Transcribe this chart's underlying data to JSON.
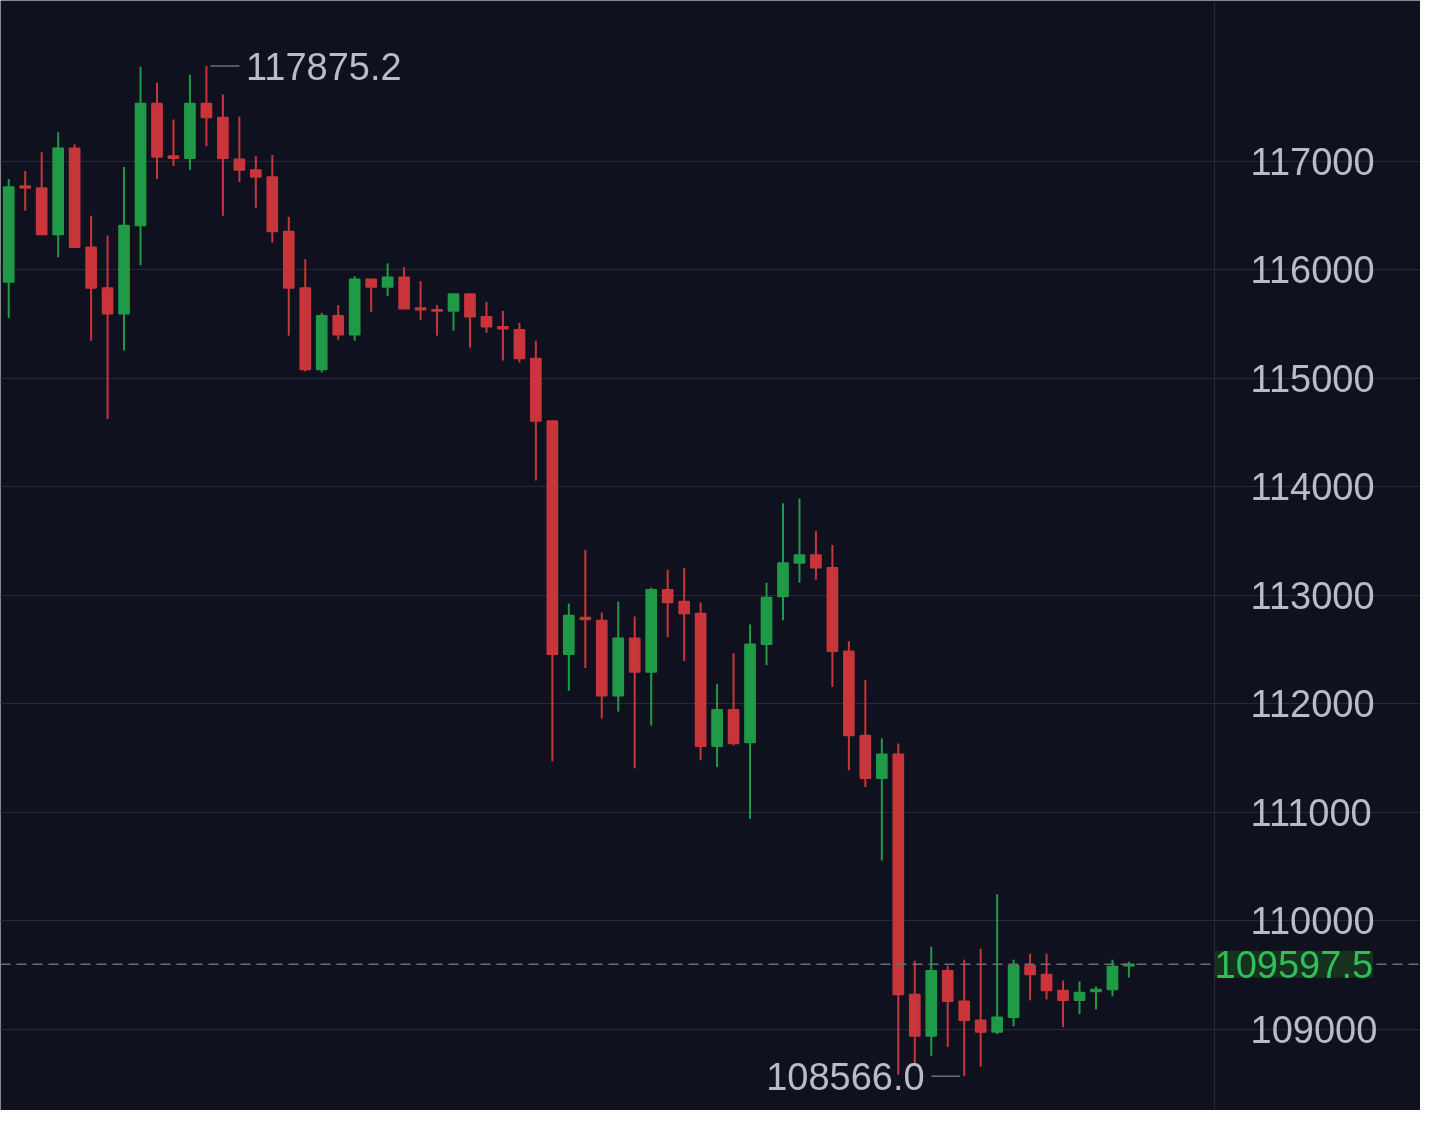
{
  "chart_data": {
    "type": "candlestick",
    "categories": [
      null,
      null,
      null,
      null,
      null,
      null,
      null,
      null,
      null,
      null,
      null,
      null,
      null,
      null,
      null,
      null,
      null,
      null,
      null,
      null,
      null,
      null,
      null,
      null,
      null,
      null,
      null,
      null,
      null,
      null,
      null,
      null,
      null,
      null,
      null,
      null,
      null,
      null,
      null,
      null,
      null,
      null,
      null,
      null,
      null,
      null,
      null,
      null,
      null,
      null,
      null,
      null,
      null,
      null,
      null,
      null,
      null,
      null,
      null,
      null,
      null,
      null,
      null,
      null,
      null,
      null,
      null,
      null,
      null
    ],
    "ohlc": [
      [
        115885,
        116835,
        115555,
        116762
      ],
      [
        116771,
        116909,
        116543,
        116753
      ],
      [
        116753,
        117082,
        116323,
        116323
      ],
      [
        116323,
        117265,
        116113,
        117119
      ],
      [
        117119,
        117155,
        116205,
        116205
      ],
      [
        116205,
        116497,
        115345,
        115830
      ],
      [
        115830,
        116314,
        114623,
        115592
      ],
      [
        115592,
        116945,
        115254,
        116406
      ],
      [
        116406,
        117869,
        116040,
        117530
      ],
      [
        117530,
        117722,
        116835,
        117037
      ],
      [
        117046,
        117384,
        116954,
        117027
      ],
      [
        117027,
        117795,
        116918,
        117530
      ],
      [
        117530,
        117875.2,
        117137,
        117402
      ],
      [
        117402,
        117613,
        116497,
        117027
      ],
      [
        117018,
        117411,
        116808,
        116918
      ],
      [
        116918,
        117046,
        116570,
        116854
      ],
      [
        116854,
        117055,
        116250,
        116351
      ],
      [
        116351,
        116488,
        115391,
        115830
      ],
      [
        115830,
        116095,
        115062,
        115080
      ],
      [
        115080,
        115601,
        115053,
        115574
      ],
      [
        115574,
        115674,
        115354,
        115400
      ],
      [
        115400,
        115939,
        115345,
        115912
      ],
      [
        115912,
        115912,
        115610,
        115839
      ],
      [
        115839,
        116058,
        115757,
        115930
      ],
      [
        115930,
        116022,
        115638,
        115638
      ],
      [
        115647,
        115894,
        115537,
        115629
      ],
      [
        115629,
        115674,
        115391,
        115619
      ],
      [
        115619,
        115775,
        115437,
        115775
      ],
      [
        115775,
        115775,
        115281,
        115565
      ],
      [
        115565,
        115702,
        115418,
        115473
      ],
      [
        115473,
        115619,
        115162,
        115455
      ],
      [
        115446,
        115510,
        115144,
        115181
      ],
      [
        115181,
        115345,
        114056,
        114605
      ],
      [
        114605,
        114605,
        111469,
        112456
      ],
      [
        112456,
        112922,
        112118,
        112812
      ],
      [
        112794,
        113416,
        112328,
        112776
      ],
      [
        112767,
        112840,
        111862,
        112072
      ],
      [
        112072,
        112941,
        111926,
        112602
      ],
      [
        112602,
        112803,
        111404,
        112291
      ],
      [
        112291,
        113069,
        111798,
        113050
      ],
      [
        113050,
        113233,
        112611,
        112931
      ],
      [
        112941,
        113251,
        112392,
        112831
      ],
      [
        112831,
        112931,
        111478,
        111606
      ],
      [
        111606,
        112182,
        111414,
        111944
      ],
      [
        111944,
        112465,
        111615,
        111633
      ],
      [
        111642,
        112730,
        110938,
        112547
      ],
      [
        112547,
        113114,
        112355,
        112977
      ],
      [
        112986,
        113846,
        112767,
        113297
      ],
      [
        113297,
        113891,
        113114,
        113370
      ],
      [
        113370,
        113590,
        113142,
        113251
      ],
      [
        113251,
        113462,
        112154,
        112483
      ],
      [
        112483,
        112575,
        111386,
        111706
      ],
      [
        111706,
        112218,
        111231,
        111313
      ],
      [
        111313,
        111679,
        110554,
        111533
      ],
      [
        111533,
        111633,
        108579,
        109320
      ],
      [
        109320,
        109631,
        108671,
        108936
      ],
      [
        108936,
        109759,
        108753,
        109539
      ],
      [
        109539,
        109585,
        108835,
        109256
      ],
      [
        109256,
        109640,
        108566.0,
        109082
      ],
      [
        109082,
        109741,
        108652,
        108973
      ],
      [
        108973,
        110243,
        108954,
        109110
      ],
      [
        109110,
        109640,
        109027,
        109585
      ],
      [
        109585,
        109695,
        109265,
        109503
      ],
      [
        109503,
        109695,
        109274,
        109357
      ],
      [
        109357,
        109448,
        109018,
        109265
      ],
      [
        109265,
        109439,
        109137,
        109338
      ],
      [
        109347,
        109393,
        109183,
        109366
      ],
      [
        109366,
        109640,
        109302,
        109576
      ],
      [
        109585,
        109622,
        109475,
        109597.5
      ]
    ],
    "colors": [
      "#1f9a47",
      "#c8353a",
      "#c8353a",
      "#1f9a47",
      "#c8353a",
      "#c8353a",
      "#c8353a",
      "#1f9a47",
      "#1f9a47",
      "#c8353a",
      "#c8353a",
      "#1f9a47",
      "#c8353a",
      "#c8353a",
      "#c8353a",
      "#c8353a",
      "#c8353a",
      "#c8353a",
      "#c8353a",
      "#1f9a47",
      "#c8353a",
      "#1f9a47",
      "#c8353a",
      "#1f9a47",
      "#c8353a",
      "#c8353a",
      "#c8353a",
      "#1f9a47",
      "#c8353a",
      "#c8353a",
      "#c8353a",
      "#c8353a",
      "#c8353a",
      "#c8353a",
      "#1f9a47",
      "#c8353a",
      "#c8353a",
      "#1f9a47",
      "#c8353a",
      "#1f9a47",
      "#c8353a",
      "#c8353a",
      "#c8353a",
      "#1f9a47",
      "#c8353a",
      "#1f9a47",
      "#1f9a47",
      "#1f9a47",
      "#1f9a47",
      "#c8353a",
      "#c8353a",
      "#c8353a",
      "#c8353a",
      "#1f9a47",
      "#c8353a",
      "#c8353a",
      "#1f9a47",
      "#c8353a",
      "#c8353a",
      "#c8353a",
      "#1f9a47",
      "#1f9a47",
      "#c8353a",
      "#c8353a",
      "#c8353a",
      "#1f9a47",
      "#1f9a47",
      "#1f9a47",
      "#1f9a47"
    ],
    "ylim": [
      108250,
      118480
    ],
    "yticks": [
      109000,
      110000,
      111000,
      112000,
      113000,
      114000,
      115000,
      116000,
      117000
    ],
    "grid": "y",
    "tick_labels": "y",
    "ref_lines": [
      {
        "axis": "y",
        "value": 109597.5,
        "label": "109597.5",
        "color": "#6b6e78",
        "line_style": "dashed"
      }
    ],
    "annotations": [
      "117875.2",
      "108566.0"
    ]
  }
}
